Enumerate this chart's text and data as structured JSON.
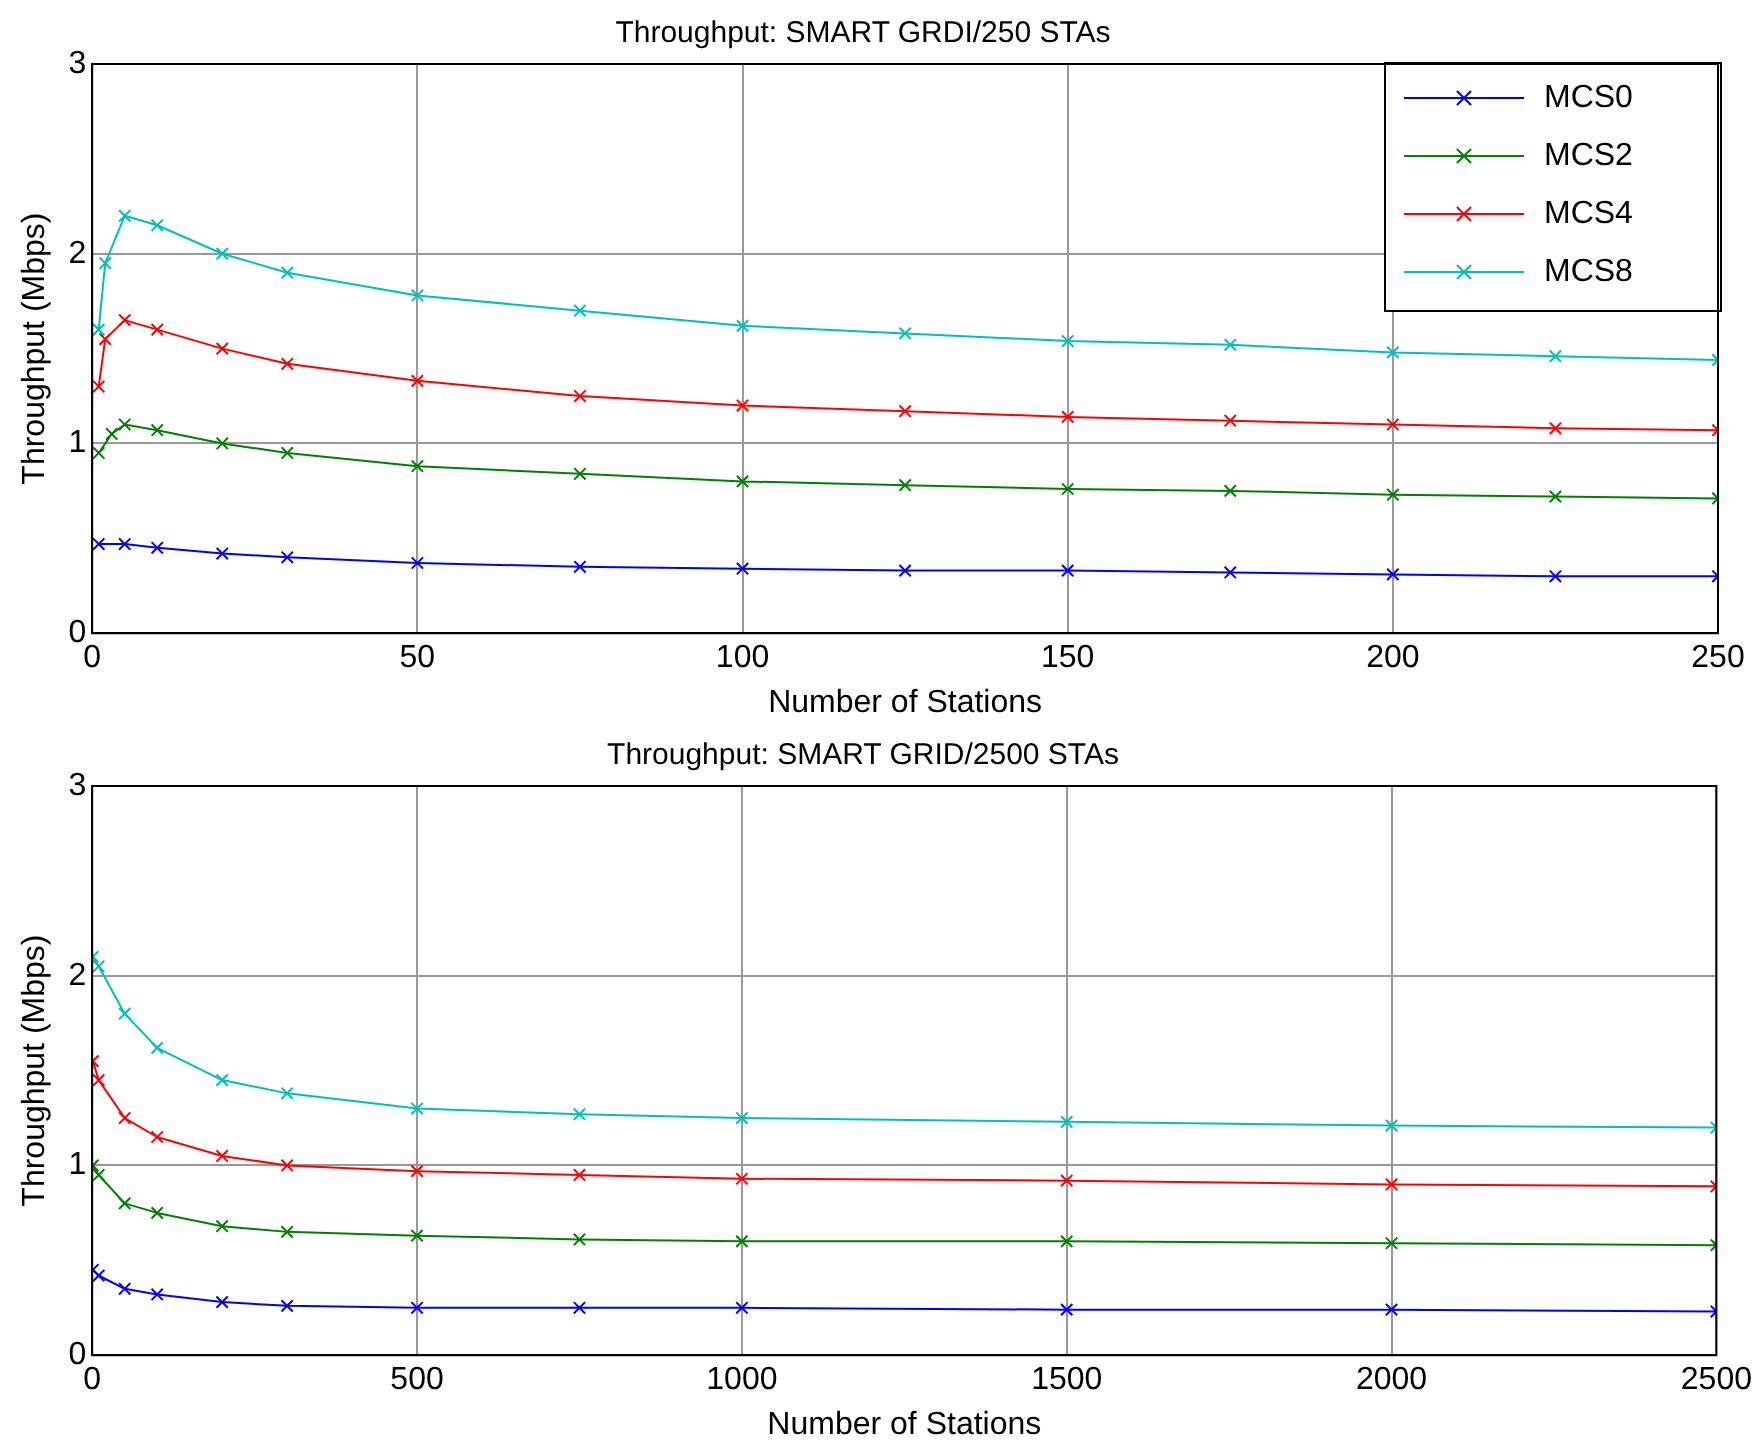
{
  "chart_data": [
    {
      "type": "line",
      "title": "Throughput: SMART GRDI/250 STAs",
      "xlabel": "Number of Stations",
      "ylabel": "Throughput (Mbps)",
      "xlim": [
        0,
        250
      ],
      "xticks": [
        0,
        50,
        100,
        150,
        200,
        250
      ],
      "ylim": [
        0,
        3
      ],
      "yticks": [
        0,
        1,
        2,
        3
      ],
      "grid": true,
      "legend": "top right",
      "marker": "cross",
      "line_style": "solid",
      "series": [
        {
          "name": "MCS0",
          "color": "#0000ff",
          "x": [
            1,
            5,
            10,
            20,
            30,
            50,
            75,
            100,
            125,
            150,
            175,
            200,
            225,
            250
          ],
          "values": [
            0.47,
            0.47,
            0.45,
            0.42,
            0.4,
            0.37,
            0.35,
            0.34,
            0.33,
            0.33,
            0.32,
            0.31,
            0.3,
            0.3
          ]
        },
        {
          "name": "MCS2",
          "color": "#008000",
          "x": [
            1,
            3,
            5,
            10,
            20,
            30,
            50,
            75,
            100,
            125,
            150,
            175,
            200,
            225,
            250
          ],
          "values": [
            0.95,
            1.05,
            1.1,
            1.07,
            1.0,
            0.95,
            0.88,
            0.84,
            0.8,
            0.78,
            0.76,
            0.75,
            0.73,
            0.72,
            0.71
          ]
        },
        {
          "name": "MCS4",
          "color": "#ff0000",
          "x": [
            1,
            2,
            5,
            10,
            20,
            30,
            50,
            75,
            100,
            125,
            150,
            175,
            200,
            225,
            250
          ],
          "values": [
            1.3,
            1.55,
            1.65,
            1.6,
            1.5,
            1.42,
            1.33,
            1.25,
            1.2,
            1.17,
            1.14,
            1.12,
            1.1,
            1.08,
            1.07
          ]
        },
        {
          "name": "MCS8",
          "color": "#00bfbf",
          "x": [
            1,
            2,
            5,
            10,
            20,
            30,
            50,
            75,
            100,
            125,
            150,
            175,
            200,
            225,
            250
          ],
          "values": [
            1.6,
            1.95,
            2.2,
            2.15,
            2.0,
            1.9,
            1.78,
            1.7,
            1.62,
            1.58,
            1.54,
            1.52,
            1.48,
            1.46,
            1.44
          ]
        }
      ]
    },
    {
      "type": "line",
      "title": "Throughput: SMART GRID/2500 STAs",
      "xlabel": "Number of Stations",
      "ylabel": "Throughput (Mbps)",
      "xlim": [
        0,
        2500
      ],
      "xticks": [
        0,
        500,
        1000,
        1500,
        2000,
        2500
      ],
      "ylim": [
        0,
        3
      ],
      "yticks": [
        0,
        1,
        2,
        3
      ],
      "grid": true,
      "marker": "cross",
      "line_style": "solid",
      "series": [
        {
          "color": "#0000ff",
          "x": [
            1,
            10,
            50,
            100,
            200,
            300,
            500,
            750,
            1000,
            1500,
            2000,
            2500
          ],
          "values": [
            0.45,
            0.42,
            0.35,
            0.32,
            0.28,
            0.26,
            0.25,
            0.25,
            0.25,
            0.24,
            0.24,
            0.23
          ]
        },
        {
          "color": "#008000",
          "x": [
            1,
            10,
            50,
            100,
            200,
            300,
            500,
            750,
            1000,
            1500,
            2000,
            2500
          ],
          "values": [
            1.0,
            0.95,
            0.8,
            0.75,
            0.68,
            0.65,
            0.63,
            0.61,
            0.6,
            0.6,
            0.59,
            0.58
          ]
        },
        {
          "color": "#ff0000",
          "x": [
            1,
            10,
            50,
            100,
            200,
            300,
            500,
            750,
            1000,
            1500,
            2000,
            2500
          ],
          "values": [
            1.55,
            1.45,
            1.25,
            1.15,
            1.05,
            1.0,
            0.97,
            0.95,
            0.93,
            0.92,
            0.9,
            0.89
          ]
        },
        {
          "color": "#00bfbf",
          "x": [
            1,
            10,
            50,
            100,
            200,
            300,
            500,
            750,
            1000,
            1500,
            2000,
            2500
          ],
          "values": [
            2.1,
            2.05,
            1.8,
            1.62,
            1.45,
            1.38,
            1.3,
            1.27,
            1.25,
            1.23,
            1.21,
            1.2
          ]
        }
      ]
    }
  ]
}
